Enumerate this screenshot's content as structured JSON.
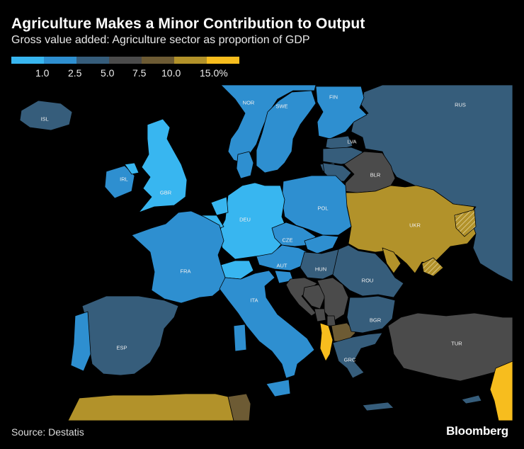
{
  "header": {
    "title": "Agriculture Makes a Minor Contribution to Output",
    "subtitle": "Gross value added: Agriculture sector as proportion of GDP"
  },
  "legend": {
    "colors": [
      "#38b6f0",
      "#2e8fd0",
      "#365d7b",
      "#4b4b4b",
      "#6d5b34",
      "#b2922a",
      "#f7bd1e"
    ],
    "ticks": [
      "1.0",
      "2.5",
      "5.0",
      "7.5",
      "10.0",
      "15.0%"
    ]
  },
  "countries": {
    "ISL": "ISL",
    "NOR": "NOR",
    "SWE": "SWE",
    "FIN": "FIN",
    "RUS": "RUS",
    "LVA": "LVA",
    "BLR": "BLR",
    "IRL": "IRL",
    "GBR": "GBR",
    "DEU": "DEU",
    "POL": "POL",
    "UKR": "UKR",
    "CZE": "CZE",
    "FRA": "FRA",
    "AUT": "AUT",
    "HUN": "HUN",
    "ROU": "ROU",
    "ITA": "ITA",
    "BGR": "BGR",
    "ESP": "ESP",
    "TUR": "TUR",
    "GRC": "GRC"
  },
  "footer": {
    "source": "Source: Destatis",
    "brand": "Bloomberg"
  }
}
